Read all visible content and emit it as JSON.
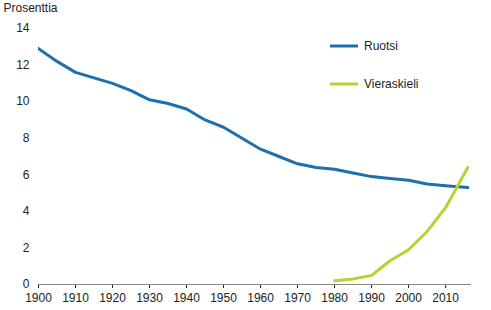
{
  "chart_data": {
    "type": "line",
    "y_label": "Prosenttia",
    "x": [
      1900,
      1905,
      1910,
      1915,
      1920,
      1925,
      1930,
      1935,
      1940,
      1945,
      1950,
      1955,
      1960,
      1965,
      1970,
      1975,
      1980,
      1985,
      1990,
      1995,
      2000,
      2005,
      2010,
      2016
    ],
    "series": [
      {
        "name": "Ruotsi",
        "color": "#1f6fad",
        "values": [
          12.9,
          12.2,
          11.6,
          11.3,
          11.0,
          10.6,
          10.1,
          9.9,
          9.6,
          9.0,
          8.6,
          8.0,
          7.4,
          7.0,
          6.6,
          6.4,
          6.3,
          6.1,
          5.9,
          5.8,
          5.7,
          5.5,
          5.4,
          5.3
        ]
      },
      {
        "name": "Vieraskieli",
        "color": "#b5d334",
        "values": [
          null,
          null,
          null,
          null,
          null,
          null,
          null,
          null,
          null,
          null,
          null,
          null,
          null,
          null,
          null,
          null,
          0.2,
          0.3,
          0.5,
          1.3,
          1.9,
          2.9,
          4.2,
          6.4
        ]
      }
    ],
    "xlim": [
      1900,
      2017
    ],
    "xticks": [
      1900,
      1910,
      1920,
      1930,
      1940,
      1950,
      1960,
      1970,
      1980,
      1990,
      2000,
      2010
    ],
    "ylim": [
      0,
      14
    ],
    "yticks": [
      0,
      2,
      4,
      6,
      8,
      10,
      12,
      14
    ],
    "grid": false,
    "legend": "top-right"
  }
}
